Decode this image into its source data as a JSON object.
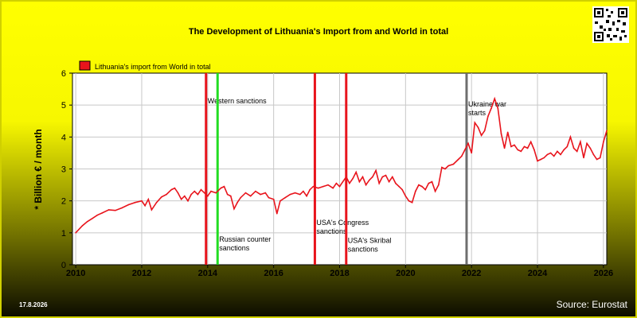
{
  "title": "The Development of Lithuania's Import from   and World in total",
  "date_stamp": "17.8.2026",
  "source": "Source: Eurostat",
  "chart_data": {
    "type": "line",
    "ylabel": "* Billion € / month",
    "ylim": [
      0,
      6
    ],
    "xlim": [
      2009.9,
      2026.1
    ],
    "y_ticks": [
      0,
      1,
      2,
      3,
      4,
      5,
      6
    ],
    "x_ticks": [
      2010,
      2012,
      2014,
      2016,
      2018,
      2020,
      2022,
      2024,
      2026
    ],
    "grid": true,
    "legend_position": "top-left",
    "series": [
      {
        "name": "Lithuania's import from World in total",
        "color": "#e8141c",
        "points": [
          [
            2010.0,
            1.0
          ],
          [
            2010.2,
            1.22
          ],
          [
            2010.35,
            1.35
          ],
          [
            2010.5,
            1.45
          ],
          [
            2010.65,
            1.55
          ],
          [
            2010.8,
            1.62
          ],
          [
            2011.0,
            1.72
          ],
          [
            2011.2,
            1.7
          ],
          [
            2011.4,
            1.78
          ],
          [
            2011.6,
            1.88
          ],
          [
            2011.8,
            1.95
          ],
          [
            2012.0,
            2.0
          ],
          [
            2012.1,
            1.85
          ],
          [
            2012.2,
            2.05
          ],
          [
            2012.3,
            1.72
          ],
          [
            2012.45,
            1.95
          ],
          [
            2012.6,
            2.12
          ],
          [
            2012.75,
            2.2
          ],
          [
            2012.9,
            2.35
          ],
          [
            2013.0,
            2.4
          ],
          [
            2013.1,
            2.25
          ],
          [
            2013.2,
            2.05
          ],
          [
            2013.3,
            2.15
          ],
          [
            2013.4,
            2.0
          ],
          [
            2013.5,
            2.2
          ],
          [
            2013.6,
            2.3
          ],
          [
            2013.7,
            2.2
          ],
          [
            2013.8,
            2.35
          ],
          [
            2013.9,
            2.25
          ],
          [
            2014.0,
            2.15
          ],
          [
            2014.1,
            2.3
          ],
          [
            2014.25,
            2.25
          ],
          [
            2014.4,
            2.4
          ],
          [
            2014.5,
            2.45
          ],
          [
            2014.6,
            2.2
          ],
          [
            2014.7,
            2.15
          ],
          [
            2014.8,
            1.75
          ],
          [
            2014.9,
            1.95
          ],
          [
            2015.0,
            2.1
          ],
          [
            2015.15,
            2.25
          ],
          [
            2015.3,
            2.15
          ],
          [
            2015.45,
            2.3
          ],
          [
            2015.6,
            2.2
          ],
          [
            2015.75,
            2.25
          ],
          [
            2015.85,
            2.1
          ],
          [
            2016.0,
            2.05
          ],
          [
            2016.1,
            1.6
          ],
          [
            2016.2,
            2.0
          ],
          [
            2016.35,
            2.1
          ],
          [
            2016.5,
            2.2
          ],
          [
            2016.65,
            2.25
          ],
          [
            2016.8,
            2.2
          ],
          [
            2016.9,
            2.3
          ],
          [
            2017.0,
            2.15
          ],
          [
            2017.1,
            2.35
          ],
          [
            2017.2,
            2.45
          ],
          [
            2017.35,
            2.4
          ],
          [
            2017.5,
            2.45
          ],
          [
            2017.65,
            2.5
          ],
          [
            2017.8,
            2.4
          ],
          [
            2017.9,
            2.55
          ],
          [
            2018.0,
            2.45
          ],
          [
            2018.1,
            2.6
          ],
          [
            2018.2,
            2.75
          ],
          [
            2018.3,
            2.55
          ],
          [
            2018.4,
            2.7
          ],
          [
            2018.5,
            2.9
          ],
          [
            2018.6,
            2.6
          ],
          [
            2018.7,
            2.75
          ],
          [
            2018.8,
            2.5
          ],
          [
            2018.9,
            2.65
          ],
          [
            2019.0,
            2.75
          ],
          [
            2019.1,
            2.95
          ],
          [
            2019.2,
            2.55
          ],
          [
            2019.3,
            2.75
          ],
          [
            2019.4,
            2.8
          ],
          [
            2019.5,
            2.6
          ],
          [
            2019.6,
            2.75
          ],
          [
            2019.7,
            2.55
          ],
          [
            2019.8,
            2.45
          ],
          [
            2019.9,
            2.35
          ],
          [
            2020.0,
            2.15
          ],
          [
            2020.1,
            2.0
          ],
          [
            2020.2,
            1.95
          ],
          [
            2020.3,
            2.3
          ],
          [
            2020.4,
            2.5
          ],
          [
            2020.5,
            2.45
          ],
          [
            2020.6,
            2.35
          ],
          [
            2020.7,
            2.55
          ],
          [
            2020.8,
            2.6
          ],
          [
            2020.9,
            2.3
          ],
          [
            2021.0,
            2.5
          ],
          [
            2021.1,
            3.05
          ],
          [
            2021.2,
            3.0
          ],
          [
            2021.3,
            3.1
          ],
          [
            2021.45,
            3.15
          ],
          [
            2021.6,
            3.3
          ],
          [
            2021.7,
            3.4
          ],
          [
            2021.8,
            3.6
          ],
          [
            2021.9,
            3.8
          ],
          [
            2022.0,
            3.5
          ],
          [
            2022.1,
            4.45
          ],
          [
            2022.2,
            4.3
          ],
          [
            2022.3,
            4.05
          ],
          [
            2022.4,
            4.2
          ],
          [
            2022.5,
            4.65
          ],
          [
            2022.6,
            4.9
          ],
          [
            2022.7,
            5.2
          ],
          [
            2022.8,
            4.9
          ],
          [
            2022.9,
            4.1
          ],
          [
            2023.0,
            3.65
          ],
          [
            2023.1,
            4.15
          ],
          [
            2023.2,
            3.7
          ],
          [
            2023.3,
            3.75
          ],
          [
            2023.4,
            3.6
          ],
          [
            2023.5,
            3.55
          ],
          [
            2023.6,
            3.7
          ],
          [
            2023.7,
            3.65
          ],
          [
            2023.8,
            3.85
          ],
          [
            2023.9,
            3.6
          ],
          [
            2024.0,
            3.25
          ],
          [
            2024.1,
            3.3
          ],
          [
            2024.2,
            3.35
          ],
          [
            2024.3,
            3.45
          ],
          [
            2024.4,
            3.5
          ],
          [
            2024.5,
            3.4
          ],
          [
            2024.6,
            3.55
          ],
          [
            2024.7,
            3.45
          ],
          [
            2024.8,
            3.6
          ],
          [
            2024.9,
            3.7
          ],
          [
            2025.0,
            4.0
          ],
          [
            2025.1,
            3.65
          ],
          [
            2025.2,
            3.55
          ],
          [
            2025.3,
            3.85
          ],
          [
            2025.4,
            3.35
          ],
          [
            2025.5,
            3.8
          ],
          [
            2025.6,
            3.65
          ],
          [
            2025.7,
            3.45
          ],
          [
            2025.8,
            3.3
          ],
          [
            2025.9,
            3.35
          ],
          [
            2026.0,
            3.85
          ],
          [
            2026.1,
            4.2
          ],
          [
            2026.2,
            4.05
          ],
          [
            2026.3,
            4.25
          ]
        ]
      }
    ],
    "events": [
      {
        "x": 2013.95,
        "color": "#e8141c",
        "label": "Western sanctions",
        "label_y": 5.05
      },
      {
        "x": 2014.3,
        "color": "#22dd22",
        "label": "Russian counter sanctions",
        "label_y": 0.72
      },
      {
        "x": 2017.25,
        "color": "#e8141c",
        "label": "USA's Congress sanctions",
        "label_y": 1.25
      },
      {
        "x": 2018.2,
        "color": "#e8141c",
        "label": "USA's Skribal sanctions",
        "label_y": 0.68
      },
      {
        "x": 2021.85,
        "color": "#6e6e6e",
        "label": "Ukraine war starts",
        "label_y": 4.95
      }
    ]
  }
}
